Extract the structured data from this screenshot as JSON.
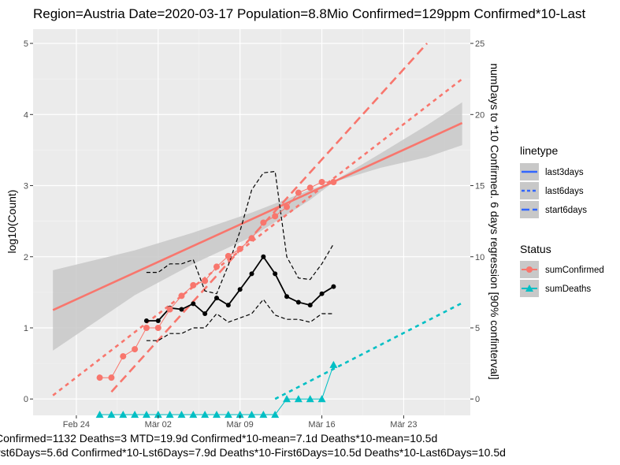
{
  "title": "Region=Austria Date=2020-03-17  Population=8.8Mio Confirmed=129ppm  Confirmed*10-Last",
  "ylabel_left": "log10(Count)",
  "ylabel_right": "numDays to *10 Confirmed. 6 days regression [90% confinterval]",
  "caption_line1": "Confirmed=1132 Deaths=3  MTD=19.9d   Confirmed*10-mean=7.1d  Deaths*10-mean=10.5d",
  "caption_line2": "rst6Days=5.6d  Confirmed*10-Lst6Days=7.9d    Deaths*10-First6Days=10.5d  Deaths*10-Last6Days=10.5d",
  "legend_linetype": {
    "title": "linetype",
    "items": [
      "last3days",
      "last6days",
      "start6days"
    ]
  },
  "legend_status": {
    "title": "Status",
    "items": [
      "sumConfirmed",
      "sumDeaths"
    ]
  },
  "colors": {
    "confirmed": "#F8766D",
    "deaths": "#00BFC4",
    "linetype_key": "#3366FF",
    "panel": "#EBEBEB",
    "grid": "#FFFFFF",
    "band": "#C8C8C8",
    "black": "#000000"
  },
  "chart_data": {
    "type": "line",
    "x_axis": {
      "unit": "day",
      "range_days_from_feb24": [
        -3.7,
        33.7
      ],
      "ticks": [
        {
          "label": "Feb 24",
          "day": 0
        },
        {
          "label": "Mär 02",
          "day": 7
        },
        {
          "label": "Mär 09",
          "day": 14
        },
        {
          "label": "Mär 16",
          "day": 21
        },
        {
          "label": "Mär 23",
          "day": 28
        }
      ]
    },
    "y_left": {
      "ylim": [
        -0.23,
        5.2
      ],
      "ticks": [
        0,
        1,
        2,
        3,
        4,
        5
      ]
    },
    "y_right": {
      "ylim": [
        -1.15,
        26.0
      ],
      "ticks": [
        0,
        5,
        10,
        15,
        20,
        25
      ]
    },
    "series": [
      {
        "name": "sumConfirmed",
        "x": [
          2,
          3,
          4,
          5,
          6,
          7,
          8,
          9,
          10,
          11,
          12,
          13,
          14,
          15,
          16,
          17,
          18,
          19,
          20,
          21,
          22
        ],
        "y": [
          0.3,
          0.3,
          0.6,
          0.7,
          1.0,
          1.0,
          1.26,
          1.45,
          1.6,
          1.66,
          1.86,
          2.01,
          2.11,
          2.26,
          2.48,
          2.57,
          2.7,
          2.9,
          2.97,
          3.05,
          3.05
        ]
      },
      {
        "name": "sumDeaths",
        "x": [
          2,
          3,
          4,
          5,
          6,
          7,
          8,
          9,
          10,
          11,
          12,
          13,
          14,
          15,
          16,
          17,
          18,
          19,
          20,
          21,
          22
        ],
        "y": [
          -0.22,
          -0.22,
          -0.22,
          -0.22,
          -0.22,
          -0.22,
          -0.22,
          -0.22,
          -0.22,
          -0.22,
          -0.22,
          -0.22,
          -0.22,
          -0.22,
          -0.22,
          -0.22,
          0.0,
          0.0,
          0.0,
          0.0,
          0.48
        ]
      },
      {
        "name": "days_to_x10",
        "axis": "right",
        "x": [
          6,
          7,
          8,
          9,
          10,
          11,
          12,
          13,
          14,
          15,
          16,
          17,
          18,
          19,
          20,
          21,
          22
        ],
        "y": [
          5.5,
          5.5,
          6.4,
          6.3,
          6.7,
          6.0,
          7.1,
          6.6,
          7.7,
          8.8,
          10.0,
          8.8,
          7.2,
          6.8,
          6.6,
          7.4,
          7.9
        ]
      },
      {
        "name": "days_to_x10_upper",
        "axis": "right",
        "x": [
          6,
          7,
          8,
          9,
          10,
          11,
          12,
          13,
          14,
          15,
          16,
          17,
          18,
          19,
          20,
          21,
          22
        ],
        "y": [
          8.9,
          8.9,
          9.5,
          9.5,
          9.8,
          7.6,
          7.4,
          9.4,
          11.8,
          14.7,
          15.9,
          16.0,
          10.0,
          8.5,
          8.4,
          9.5,
          10.9
        ]
      },
      {
        "name": "days_to_x10_lower",
        "axis": "right",
        "x": [
          6,
          7,
          8,
          9,
          10,
          11,
          12,
          13,
          14,
          15,
          16,
          17,
          18,
          19,
          20,
          21,
          22
        ],
        "y": [
          4.1,
          4.1,
          4.6,
          4.6,
          5.0,
          5.0,
          6.0,
          5.4,
          5.7,
          6.0,
          7.0,
          5.9,
          5.6,
          5.6,
          5.4,
          6.0,
          6.0
        ]
      }
    ],
    "trend_lines": [
      {
        "name": "fit_confirmed",
        "x": [
          -2,
          33
        ],
        "y": [
          1.25,
          3.88
        ]
      },
      {
        "name": "start6days",
        "x": [
          3,
          30
        ],
        "y": [
          0.1,
          5.0
        ]
      },
      {
        "name": "last6days",
        "x": [
          -2,
          33
        ],
        "y": [
          0.05,
          4.5
        ]
      },
      {
        "name": "deaths_last6days",
        "x": [
          17,
          33
        ],
        "y": [
          0.0,
          1.35
        ]
      }
    ],
    "confidence_band": {
      "x": [
        -2,
        5,
        10,
        15,
        20,
        22,
        26,
        30,
        33
      ],
      "lower": [
        0.68,
        1.46,
        1.9,
        2.28,
        2.8,
        3.05,
        3.25,
        3.4,
        3.57
      ],
      "upper": [
        1.81,
        2.09,
        2.34,
        2.62,
        2.94,
        3.06,
        3.45,
        3.85,
        4.17
      ]
    }
  }
}
